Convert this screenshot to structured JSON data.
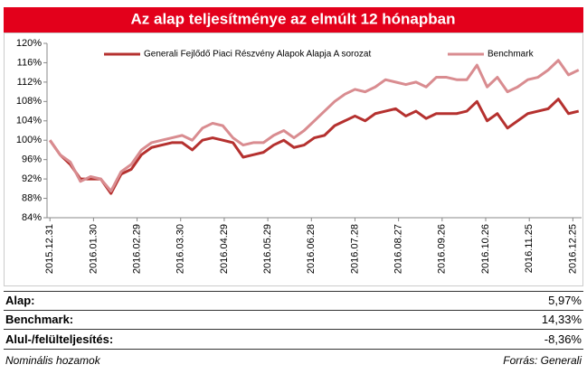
{
  "chart_data": {
    "type": "line",
    "title": "Az alap teljesítménye az elmúlt 12 hónapban",
    "x": [
      "2015.12.31",
      "2016.01.07",
      "2016.01.14",
      "2016.01.21",
      "2016.01.28",
      "2016.02.04",
      "2016.02.11",
      "2016.02.18",
      "2016.02.25",
      "2016.03.03",
      "2016.03.10",
      "2016.03.17",
      "2016.03.24",
      "2016.03.31",
      "2016.04.07",
      "2016.04.14",
      "2016.04.21",
      "2016.04.28",
      "2016.05.05",
      "2016.05.12",
      "2016.05.19",
      "2016.05.26",
      "2016.06.02",
      "2016.06.09",
      "2016.06.16",
      "2016.06.23",
      "2016.06.30",
      "2016.07.07",
      "2016.07.14",
      "2016.07.21",
      "2016.07.28",
      "2016.08.04",
      "2016.08.11",
      "2016.08.18",
      "2016.08.25",
      "2016.09.01",
      "2016.09.08",
      "2016.09.15",
      "2016.09.22",
      "2016.09.29",
      "2016.10.06",
      "2016.10.13",
      "2016.10.20",
      "2016.10.27",
      "2016.11.03",
      "2016.11.10",
      "2016.11.17",
      "2016.11.24",
      "2016.12.01",
      "2016.12.08",
      "2016.12.15",
      "2016.12.22",
      "2016.12.29"
    ],
    "series": [
      {
        "name": "Generali Fejlődő Piaci Részvény Alapok Alapja A sorozat",
        "color": "#b5312f",
        "values": [
          100,
          97,
          95,
          92,
          92,
          92,
          89,
          93,
          94,
          97,
          98.5,
          99,
          99.5,
          99.5,
          98,
          100,
          100.5,
          100,
          99.5,
          96.5,
          97,
          97.5,
          99,
          100,
          98.5,
          99,
          100.5,
          101,
          103,
          104,
          105,
          104,
          105.5,
          106,
          106.5,
          105,
          106,
          104.5,
          105.5,
          105.5,
          105.5,
          106,
          108,
          104,
          105.5,
          102.5,
          104,
          105.5,
          106,
          106.5,
          108.5,
          105.5,
          106
        ]
      },
      {
        "name": "Benchmark",
        "color": "#d98c90",
        "values": [
          100,
          97,
          95.5,
          91.5,
          92.5,
          92,
          89.5,
          93.5,
          95,
          98,
          99.5,
          100,
          100.5,
          101,
          100,
          102.5,
          103.5,
          103,
          100.5,
          99,
          99.5,
          99.5,
          101,
          102,
          100.5,
          102,
          104,
          106,
          108,
          109.5,
          110.5,
          110,
          111,
          112.5,
          112,
          111.5,
          112,
          111,
          113,
          113,
          112.5,
          112.5,
          115.5,
          111,
          113,
          110,
          111,
          112.5,
          113,
          114.5,
          116.5,
          113.5,
          114.5
        ]
      }
    ],
    "xlim": [
      "2015.12.29",
      "2016.12.31"
    ],
    "xticks": [
      "2015.12.31",
      "2016.01.30",
      "2016.02.29",
      "2016.03.30",
      "2016.04.29",
      "2016.05.29",
      "2016.06.28",
      "2016.07.28",
      "2016.08.27",
      "2016.09.26",
      "2016.10.26",
      "2016.11.25",
      "2016.12.25"
    ],
    "ylim": [
      84,
      120
    ],
    "yticks": [
      {
        "value": 84,
        "label": "84%"
      },
      {
        "value": 88,
        "label": "88%"
      },
      {
        "value": 92,
        "label": "92%"
      },
      {
        "value": 96,
        "label": "96%"
      },
      {
        "value": 100,
        "label": "100%"
      },
      {
        "value": 104,
        "label": "104%"
      },
      {
        "value": 108,
        "label": "108%"
      },
      {
        "value": 112,
        "label": "112%"
      },
      {
        "value": 116,
        "label": "116%"
      },
      {
        "value": 120,
        "label": "120%"
      }
    ],
    "legend": "top"
  },
  "table": {
    "rows": [
      [
        "Alap:",
        "5,97%"
      ],
      [
        "Benchmark:",
        "14,33%"
      ],
      [
        "Alul-/felülteljesítés:",
        "-8,36%"
      ]
    ]
  },
  "footer": {
    "left": "Nominális hozamok",
    "right": "Forrás: Generali"
  }
}
